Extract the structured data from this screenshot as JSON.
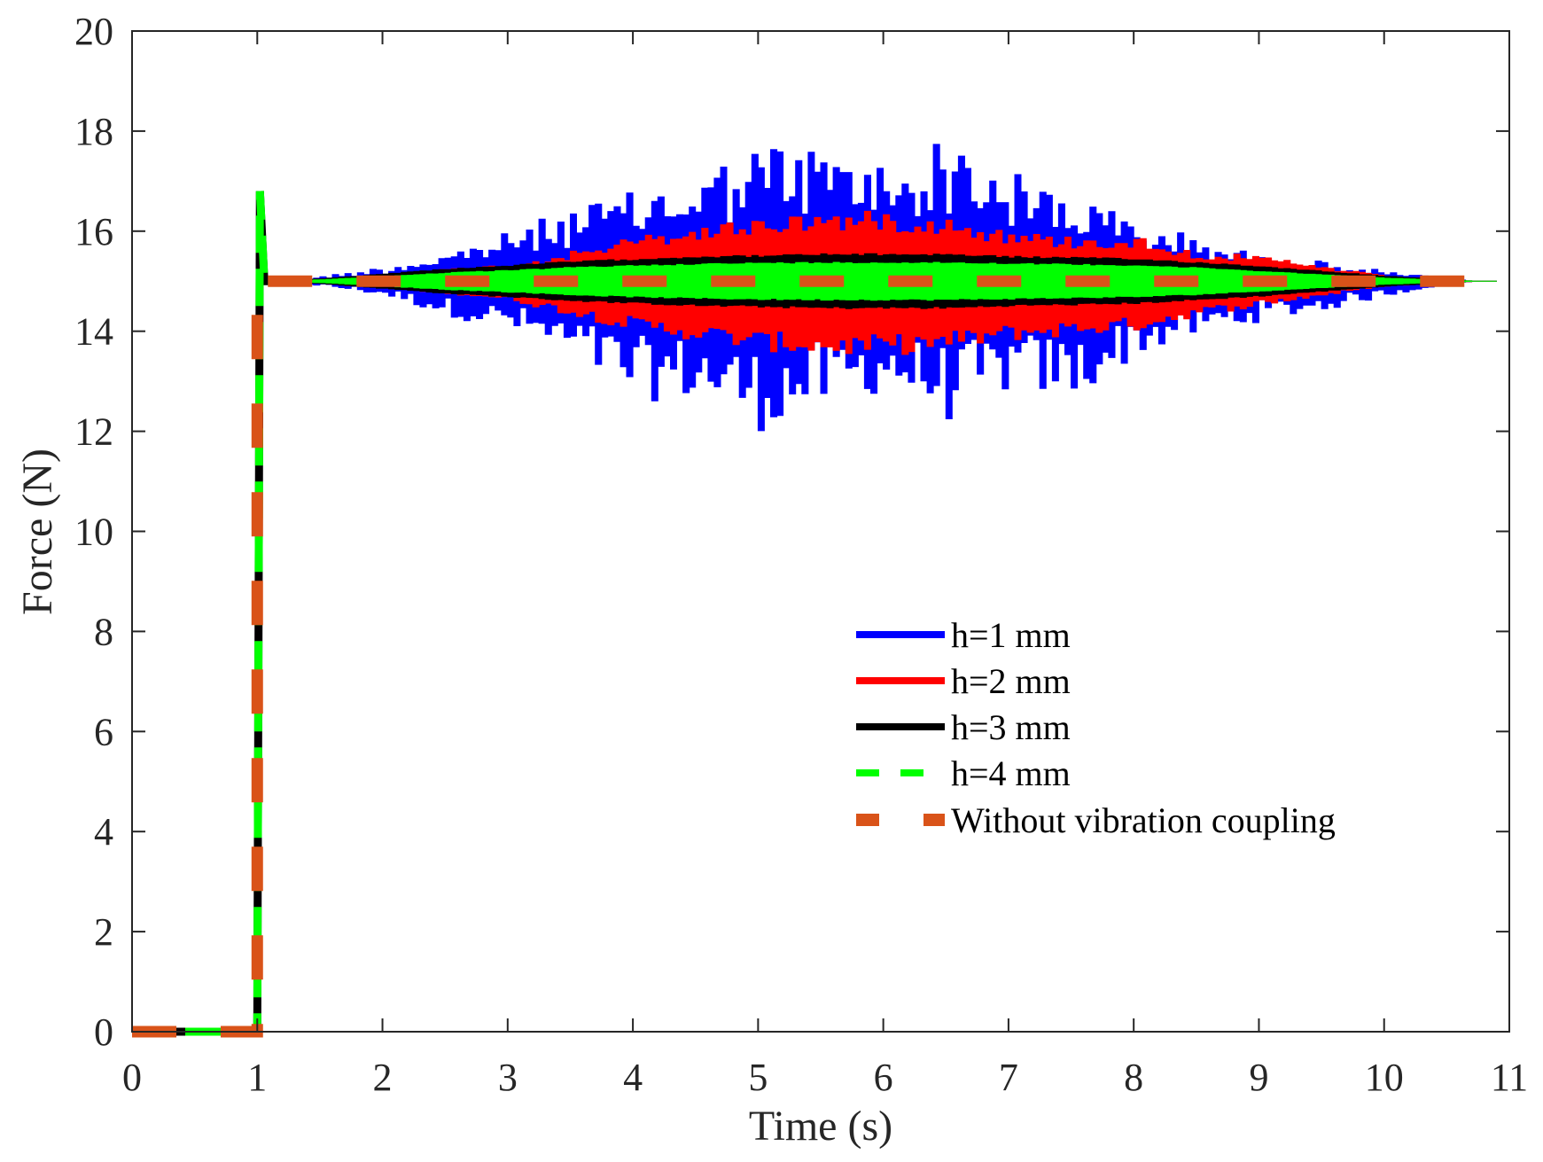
{
  "chart_data": {
    "type": "line",
    "title": "",
    "xlabel": "Time (s)",
    "ylabel": "Force (N)",
    "xlim": [
      0,
      11
    ],
    "ylim": [
      0,
      20
    ],
    "xticks": [
      0,
      1,
      2,
      3,
      4,
      5,
      6,
      7,
      8,
      9,
      10,
      11
    ],
    "yticks": [
      0,
      2,
      4,
      6,
      8,
      10,
      12,
      14,
      16,
      18,
      20
    ],
    "xtick_labels": [
      "0",
      "1",
      "2",
      "3",
      "4",
      "5",
      "6",
      "7",
      "8",
      "9",
      "10",
      "11"
    ],
    "ytick_labels": [
      "0",
      "2",
      "4",
      "6",
      "8",
      "10",
      "12",
      "14",
      "16",
      "18",
      "20"
    ],
    "grid": false,
    "legend_position": "center-right",
    "step": {
      "t0": 0,
      "t_step": 1,
      "f_before": 0,
      "f_after": 15,
      "overshoot_peak": 16.8
    },
    "series": [
      {
        "name": "h=1 mm",
        "color": "#0000ff",
        "style": "solid",
        "envelope_t": [
          1.1,
          1.5,
          2,
          2.5,
          3,
          3.5,
          4,
          4.5,
          5,
          5.5,
          6,
          6.5,
          7,
          7.5,
          8,
          8.5,
          9,
          9.5,
          10,
          10.5,
          10.7,
          11
        ],
        "upper": [
          15.0,
          15.1,
          15.3,
          15.6,
          16.0,
          16.5,
          16.8,
          17.2,
          17.8,
          17.7,
          17.4,
          17.9,
          17.2,
          16.8,
          16.2,
          15.9,
          15.5,
          15.4,
          15.2,
          15.05,
          15.0,
          15.0
        ],
        "lower": [
          15.0,
          14.9,
          14.7,
          14.3,
          14.0,
          13.4,
          12.6,
          12.6,
          12.0,
          12.4,
          12.8,
          12.2,
          12.8,
          12.6,
          13.5,
          13.9,
          14.2,
          14.4,
          14.7,
          14.95,
          15.0,
          15.0
        ]
      },
      {
        "name": "h=2 mm",
        "color": "#ff0000",
        "style": "solid",
        "envelope_t": [
          1.1,
          1.5,
          2,
          2.5,
          3,
          3.5,
          4,
          4.5,
          5,
          5.5,
          6,
          6.5,
          7,
          7.5,
          8,
          8.5,
          9,
          9.5,
          10,
          10.5,
          10.7,
          11
        ],
        "upper": [
          15.0,
          15.05,
          15.15,
          15.25,
          15.35,
          15.6,
          15.9,
          16.1,
          16.3,
          16.4,
          16.4,
          16.3,
          16.0,
          15.9,
          15.9,
          15.6,
          15.5,
          15.3,
          15.1,
          15.03,
          15.0,
          15.0
        ],
        "lower": [
          15.0,
          14.95,
          14.85,
          14.75,
          14.6,
          14.3,
          14.0,
          13.8,
          13.6,
          13.5,
          13.5,
          13.6,
          13.8,
          13.9,
          14.0,
          14.3,
          14.5,
          14.7,
          14.9,
          14.97,
          15.0,
          15.0
        ]
      },
      {
        "name": "h=3 mm",
        "color": "#000000",
        "style": "solid",
        "envelope_t": [
          1.1,
          1.5,
          2,
          2.5,
          3,
          3.5,
          4,
          4.5,
          5,
          5.5,
          6,
          6.5,
          7,
          7.5,
          8,
          8.5,
          9,
          9.5,
          10,
          10.5,
          10.7,
          11
        ],
        "upper": [
          15.0,
          15.05,
          15.15,
          15.25,
          15.32,
          15.4,
          15.45,
          15.5,
          15.52,
          15.55,
          15.55,
          15.55,
          15.5,
          15.48,
          15.45,
          15.38,
          15.3,
          15.2,
          15.1,
          15.03,
          15.0,
          15.0
        ],
        "lower": [
          15.0,
          14.95,
          14.85,
          14.75,
          14.68,
          14.6,
          14.55,
          14.5,
          14.48,
          14.45,
          14.45,
          14.45,
          14.5,
          14.52,
          14.55,
          14.62,
          14.7,
          14.8,
          14.9,
          14.97,
          15.0,
          15.0
        ]
      },
      {
        "name": "h=4 mm",
        "color": "#00ff00",
        "style": "dashed",
        "envelope_t": [
          1.1,
          1.5,
          2,
          2.5,
          3,
          3.5,
          4,
          4.5,
          5,
          5.5,
          6,
          6.5,
          7,
          7.5,
          8,
          8.5,
          9,
          9.5,
          10,
          10.5,
          10.7,
          11
        ],
        "upper": [
          15.0,
          15.03,
          15.1,
          15.17,
          15.22,
          15.28,
          15.32,
          15.35,
          15.37,
          15.38,
          15.38,
          15.38,
          15.36,
          15.34,
          15.32,
          15.27,
          15.2,
          15.13,
          15.06,
          15.02,
          15.0,
          15.0
        ],
        "lower": [
          15.0,
          14.97,
          14.9,
          14.83,
          14.78,
          14.72,
          14.68,
          14.65,
          14.63,
          14.62,
          14.62,
          14.62,
          14.64,
          14.66,
          14.68,
          14.73,
          14.8,
          14.87,
          14.94,
          14.98,
          15.0,
          15.0
        ]
      },
      {
        "name": "Without vibration coupling",
        "color": "#d95319",
        "style": "dashed",
        "x": [
          0,
          1,
          1,
          11
        ],
        "y": [
          0,
          0,
          15,
          15
        ]
      }
    ]
  }
}
